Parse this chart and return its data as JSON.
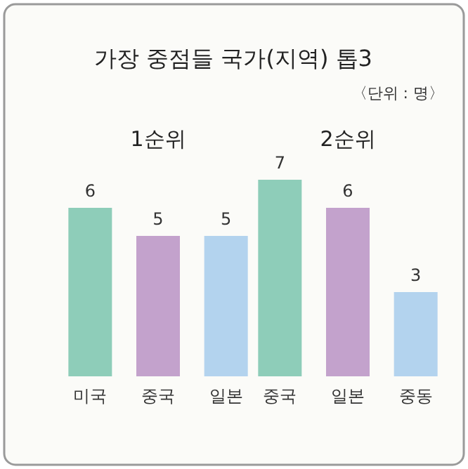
{
  "chart_data": [
    {
      "type": "bar",
      "title": "1순위",
      "annotations": [
        "가장 중점들 국가(지역) 톱3",
        "〈단위 : 명〉"
      ],
      "categories": [
        "미국",
        "중국",
        "일본"
      ],
      "values": [
        6,
        5,
        5
      ],
      "colors": [
        "#8ecdb9",
        "#c3a2cc",
        "#b3d3ee"
      ],
      "data_labels": true
    },
    {
      "type": "bar",
      "title": "2순위",
      "categories": [
        "중국",
        "일본",
        "중동"
      ],
      "values": [
        7,
        6,
        3
      ],
      "colors": [
        "#8ecdb9",
        "#c3a2cc",
        "#b3d3ee"
      ],
      "data_labels": true
    }
  ]
}
